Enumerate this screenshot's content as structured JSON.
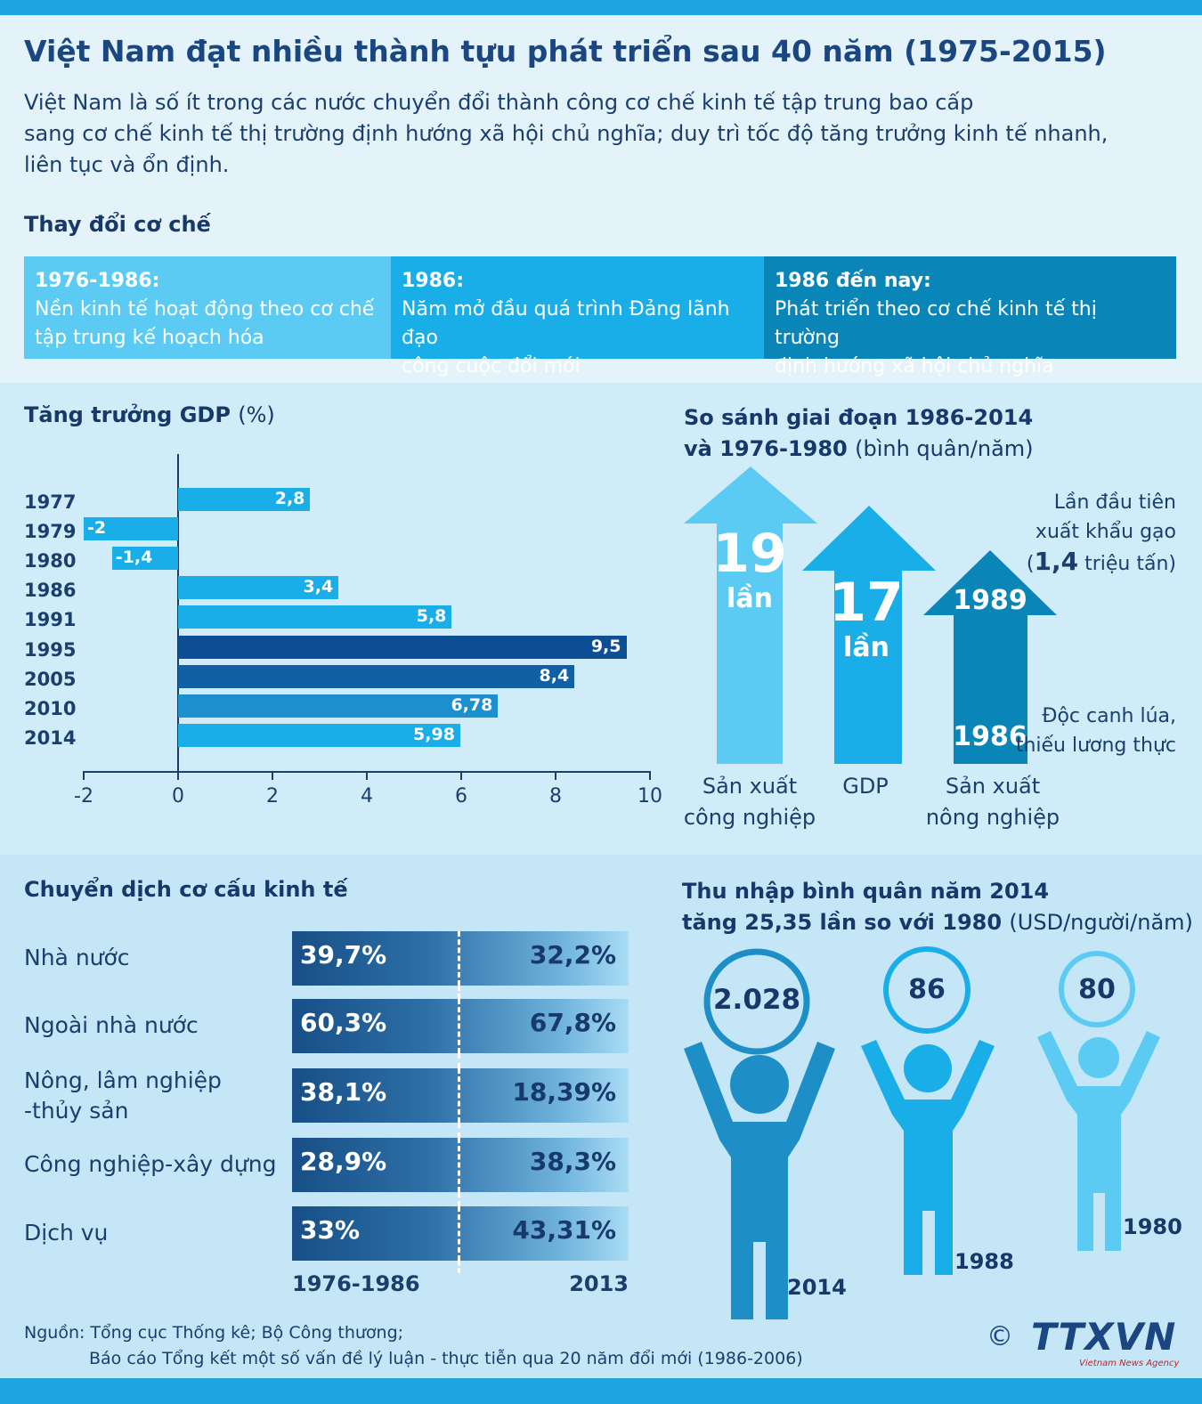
{
  "title": "Việt Nam đạt nhiều thành tựu phát triển sau 40 năm (1975-2015)",
  "intro": [
    "Việt Nam là số ít trong các nước chuyển đổi thành công cơ chế kinh tế tập trung bao cấp",
    "sang cơ chế kinh tế thị trường định hướng xã hội chủ nghĩa; duy trì tốc độ tăng trưởng kinh tế nhanh,",
    "liên tục và ổn định."
  ],
  "mechanism": {
    "heading": "Thay đổi cơ chế",
    "phases": [
      {
        "period": "1976-1986:",
        "lines": [
          "Nền kinh tế hoạt động theo cơ chế",
          "tập trung kế hoạch hóa"
        ],
        "color": "#5ccbf3"
      },
      {
        "period": "1986:",
        "lines": [
          "Năm mở đầu quá trình Đảng lãnh đạo",
          "công cuộc đổi mới"
        ],
        "color": "#1aaee8"
      },
      {
        "period": "1986 đến nay:",
        "lines": [
          "Phát triển theo cơ chế kinh tế thị trường",
          "định hướng xã hội chủ nghĩa"
        ],
        "color": "#0a85b8"
      }
    ]
  },
  "chart_data": [
    {
      "type": "bar",
      "orientation": "horizontal",
      "title": "Tăng trưởng GDP",
      "unit": "(%)",
      "categories": [
        "1977",
        "1979",
        "1980",
        "1986",
        "1991",
        "1995",
        "2005",
        "2010",
        "2014"
      ],
      "values": [
        2.8,
        -2,
        -1.4,
        3.4,
        5.8,
        9.5,
        8.4,
        6.78,
        5.98
      ],
      "value_labels": [
        "2,8",
        "-2",
        "-1,4",
        "3,4",
        "5,8",
        "9,5",
        "8,4",
        "6,78",
        "5,98"
      ],
      "colors": [
        "#1aaee8",
        "#1aaee8",
        "#1aaee8",
        "#1aaee8",
        "#1aaee8",
        "#0d4e94",
        "#1060a6",
        "#1c8fcf",
        "#1aaee8"
      ],
      "xlim": [
        -2,
        10
      ],
      "xticks": [
        "-2",
        "0",
        "2",
        "4",
        "6",
        "8",
        "10"
      ]
    },
    {
      "type": "bar",
      "title_line1": "So sánh giai đoạn 1986-2014",
      "title_line2_bold": "và 1976-1980",
      "title_line2_light": "(bình quân/năm)",
      "categories": [
        "Sản xuất công nghiệp",
        "GDP",
        "Sản xuất nông nghiệp"
      ],
      "values": [
        19,
        17,
        null
      ],
      "arrows": [
        {
          "num": "19",
          "unit": "lần",
          "label1": "Sản xuất",
          "label2": "công nghiệp",
          "color": "#5ccbf3"
        },
        {
          "num": "17",
          "unit": "lần",
          "label1": "GDP",
          "label2": "",
          "color": "#1aaee8"
        },
        {
          "year_top": "1989",
          "year_bottom": "1986",
          "label1": "Sản xuất",
          "label2": "nông nghiệp",
          "color": "#0a85b8"
        }
      ],
      "note_top": [
        "Lần đầu tiên",
        "xuất khẩu gạo"
      ],
      "note_top_paren_open": "(",
      "note_top_num": "1,4",
      "note_top_unit": "triệu tấn)",
      "note_bottom": [
        "Độc canh lúa,",
        "thiếu lương thực"
      ]
    },
    {
      "type": "table",
      "title": "Chuyển dịch cơ cấu kinh tế",
      "columns": [
        "1976-1986",
        "2013"
      ],
      "rows": [
        {
          "label": [
            "Nhà nước"
          ],
          "a": "39,7%",
          "b": "32,2%"
        },
        {
          "label": [
            "Ngoài nhà nước"
          ],
          "a": "60,3%",
          "b": "67,8%"
        },
        {
          "label": [
            "Nông, lâm nghiệp",
            "-thủy sản"
          ],
          "a": "38,1%",
          "b": "18,39%"
        },
        {
          "label": [
            "Công nghiệp-xây dựng"
          ],
          "a": "28,9%",
          "b": "38,3%"
        },
        {
          "label": [
            "Dịch vụ"
          ],
          "a": "33%",
          "b": "43,31%"
        }
      ]
    },
    {
      "type": "bar",
      "title_line1": "Thu nhập bình quân năm 2014",
      "title_line2_bold": "tăng 25,35 lần so với 1980",
      "title_line2_light": "(USD/người/năm)",
      "categories": [
        "2014",
        "1988",
        "1980"
      ],
      "values": [
        2028,
        86,
        80
      ],
      "value_labels": [
        "2.028",
        "86",
        "80"
      ],
      "colors": [
        "#1e8fc6",
        "#1aaee8",
        "#5ccbf3"
      ]
    }
  ],
  "source": {
    "line1": "Nguồn: Tổng cục Thống kê; Bộ Công thương;",
    "line2": "Báo cáo Tổng kết một số vấn đề lý luận - thực tiễn qua 20 năm đổi mới (1986-2006)"
  },
  "logo": {
    "copyright": "©",
    "brand": "TTXVN",
    "agency": "Vietnam News Agency"
  }
}
